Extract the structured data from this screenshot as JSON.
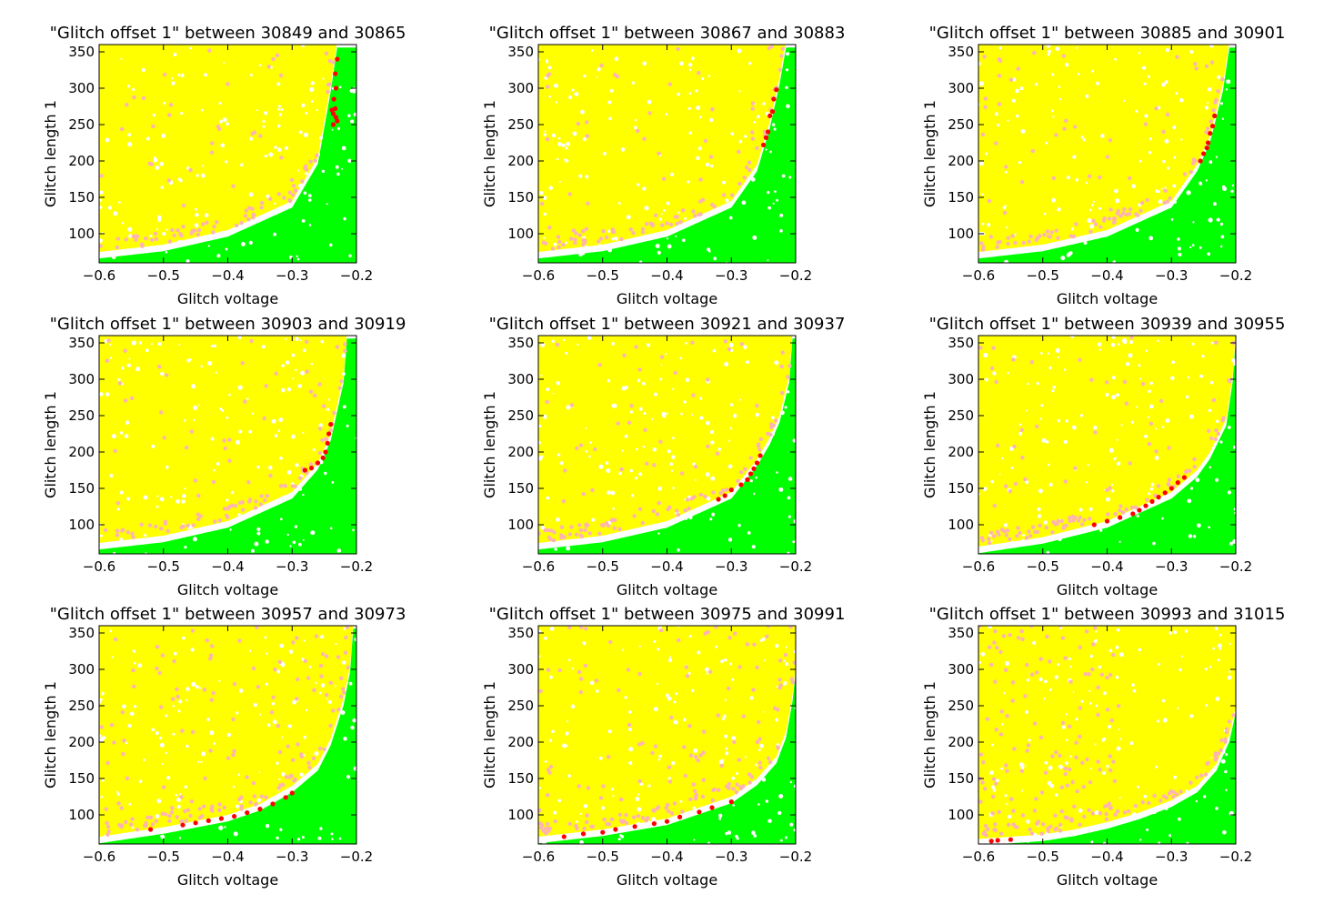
{
  "chart_data": {
    "type": "scatter",
    "layout": "3x3 grid of scatter subplots",
    "xlabel": "Glitch voltage",
    "ylabel": "Glitch length 1",
    "xlim": [
      -0.6,
      -0.2
    ],
    "ylim": [
      60,
      360
    ],
    "xticks": [
      -0.6,
      -0.5,
      -0.4,
      -0.3,
      -0.2
    ],
    "xtick_labels": [
      "−0.6",
      "−0.5",
      "−0.4",
      "−0.3",
      "−0.2"
    ],
    "yticks": [
      100,
      150,
      200,
      250,
      300,
      350
    ],
    "ytick_labels": [
      "100",
      "150",
      "200",
      "250",
      "300",
      "350"
    ],
    "grid": false,
    "legend": "none",
    "colors": {
      "green": "#00ff00",
      "yellow": "#ffff00",
      "pink": "#ffb3b3",
      "red": "#ff0000",
      "frame": "#000000"
    },
    "panels": [
      {
        "title": "\"Glitch offset 1\" between 30849 and 30865",
        "boundary": [
          [
            -0.6,
            70
          ],
          [
            -0.5,
            80
          ],
          [
            -0.4,
            100
          ],
          [
            -0.3,
            140
          ],
          [
            -0.26,
            200
          ],
          [
            -0.24,
            300
          ],
          [
            -0.23,
            360
          ]
        ],
        "red": [
          [
            -0.23,
            340
          ],
          [
            -0.233,
            320
          ],
          [
            -0.232,
            300
          ],
          [
            -0.235,
            285
          ],
          [
            -0.233,
            272
          ],
          [
            -0.236,
            265
          ],
          [
            -0.232,
            260
          ],
          [
            -0.238,
            270
          ],
          [
            -0.23,
            255
          ],
          [
            -0.236,
            250
          ]
        ]
      },
      {
        "title": "\"Glitch offset 1\" between 30867 and 30883",
        "boundary": [
          [
            -0.6,
            70
          ],
          [
            -0.5,
            80
          ],
          [
            -0.4,
            100
          ],
          [
            -0.3,
            140
          ],
          [
            -0.26,
            190
          ],
          [
            -0.24,
            250
          ],
          [
            -0.225,
            310
          ],
          [
            -0.215,
            360
          ]
        ],
        "red": [
          [
            -0.23,
            298
          ],
          [
            -0.234,
            285
          ],
          [
            -0.236,
            268
          ],
          [
            -0.24,
            262
          ],
          [
            -0.243,
            240
          ],
          [
            -0.246,
            232
          ],
          [
            -0.25,
            222
          ]
        ]
      },
      {
        "title": "\"Glitch offset 1\" between 30885 and 30901",
        "boundary": [
          [
            -0.6,
            70
          ],
          [
            -0.5,
            80
          ],
          [
            -0.4,
            100
          ],
          [
            -0.3,
            140
          ],
          [
            -0.26,
            190
          ],
          [
            -0.24,
            230
          ],
          [
            -0.22,
            300
          ],
          [
            -0.21,
            360
          ]
        ],
        "red": [
          [
            -0.233,
            262
          ],
          [
            -0.236,
            248
          ],
          [
            -0.24,
            238
          ],
          [
            -0.243,
            225
          ],
          [
            -0.245,
            218
          ],
          [
            -0.25,
            210
          ],
          [
            -0.255,
            200
          ]
        ]
      },
      {
        "title": "\"Glitch offset 1\" between 30903 and 30919",
        "boundary": [
          [
            -0.6,
            70
          ],
          [
            -0.5,
            80
          ],
          [
            -0.4,
            100
          ],
          [
            -0.3,
            140
          ],
          [
            -0.26,
            180
          ],
          [
            -0.24,
            220
          ],
          [
            -0.22,
            300
          ],
          [
            -0.215,
            360
          ]
        ],
        "red": [
          [
            -0.24,
            238
          ],
          [
            -0.243,
            225
          ],
          [
            -0.245,
            212
          ],
          [
            -0.248,
            200
          ],
          [
            -0.252,
            192
          ],
          [
            -0.26,
            185
          ],
          [
            -0.27,
            178
          ],
          [
            -0.28,
            175
          ]
        ]
      },
      {
        "title": "\"Glitch offset 1\" between 30921 and 30937",
        "boundary": [
          [
            -0.6,
            70
          ],
          [
            -0.5,
            80
          ],
          [
            -0.4,
            100
          ],
          [
            -0.3,
            140
          ],
          [
            -0.26,
            185
          ],
          [
            -0.24,
            215
          ],
          [
            -0.225,
            245
          ],
          [
            -0.21,
            300
          ],
          [
            -0.205,
            360
          ]
        ],
        "red": [
          [
            -0.255,
            195
          ],
          [
            -0.26,
            185
          ],
          [
            -0.265,
            177
          ],
          [
            -0.27,
            170
          ],
          [
            -0.275,
            162
          ],
          [
            -0.285,
            155
          ],
          [
            -0.3,
            148
          ],
          [
            -0.31,
            140
          ],
          [
            -0.32,
            135
          ]
        ]
      },
      {
        "title": "\"Glitch offset 1\" between 30939 and 30955",
        "boundary": [
          [
            -0.6,
            65
          ],
          [
            -0.5,
            78
          ],
          [
            -0.4,
            100
          ],
          [
            -0.3,
            140
          ],
          [
            -0.26,
            170
          ],
          [
            -0.24,
            195
          ],
          [
            -0.215,
            240
          ],
          [
            -0.205,
            300
          ],
          [
            -0.2,
            360
          ]
        ],
        "red": [
          [
            -0.28,
            165
          ],
          [
            -0.29,
            158
          ],
          [
            -0.3,
            150
          ],
          [
            -0.31,
            144
          ],
          [
            -0.32,
            138
          ],
          [
            -0.33,
            132
          ],
          [
            -0.34,
            126
          ],
          [
            -0.35,
            120
          ],
          [
            -0.36,
            115
          ],
          [
            -0.38,
            110
          ],
          [
            -0.4,
            105
          ],
          [
            -0.42,
            100
          ]
        ]
      },
      {
        "title": "\"Glitch offset 1\" between 30957 and 30973",
        "boundary": [
          [
            -0.6,
            65
          ],
          [
            -0.5,
            78
          ],
          [
            -0.4,
            95
          ],
          [
            -0.35,
            110
          ],
          [
            -0.3,
            135
          ],
          [
            -0.26,
            165
          ],
          [
            -0.24,
            200
          ],
          [
            -0.22,
            255
          ],
          [
            -0.21,
            300
          ],
          [
            -0.205,
            360
          ]
        ],
        "red": [
          [
            -0.3,
            130
          ],
          [
            -0.31,
            124
          ],
          [
            -0.33,
            115
          ],
          [
            -0.35,
            108
          ],
          [
            -0.37,
            103
          ],
          [
            -0.39,
            98
          ],
          [
            -0.41,
            95
          ],
          [
            -0.43,
            92
          ],
          [
            -0.45,
            89
          ],
          [
            -0.47,
            86
          ],
          [
            -0.52,
            80
          ]
        ]
      },
      {
        "title": "\"Glitch offset 1\" between 30975 and 30991",
        "boundary": [
          [
            -0.6,
            65
          ],
          [
            -0.5,
            75
          ],
          [
            -0.4,
            90
          ],
          [
            -0.3,
            120
          ],
          [
            -0.26,
            145
          ],
          [
            -0.23,
            175
          ],
          [
            -0.215,
            210
          ],
          [
            -0.205,
            260
          ],
          [
            -0.2,
            300
          ]
        ],
        "red": [
          [
            -0.3,
            118
          ],
          [
            -0.33,
            110
          ],
          [
            -0.35,
            104
          ],
          [
            -0.38,
            97
          ],
          [
            -0.4,
            91
          ],
          [
            -0.42,
            88
          ],
          [
            -0.45,
            84
          ],
          [
            -0.48,
            80
          ],
          [
            -0.5,
            76
          ],
          [
            -0.53,
            74
          ],
          [
            -0.56,
            70
          ]
        ]
      },
      {
        "title": "\"Glitch offset 1\" between 30993 and 31015",
        "boundary": [
          [
            -0.6,
            62
          ],
          [
            -0.5,
            68
          ],
          [
            -0.45,
            75
          ],
          [
            -0.4,
            85
          ],
          [
            -0.35,
            98
          ],
          [
            -0.3,
            115
          ],
          [
            -0.26,
            135
          ],
          [
            -0.23,
            165
          ],
          [
            -0.21,
            205
          ],
          [
            -0.2,
            245
          ]
        ],
        "red": [
          [
            -0.55,
            66
          ],
          [
            -0.57,
            65
          ],
          [
            -0.58,
            64
          ]
        ]
      }
    ]
  }
}
